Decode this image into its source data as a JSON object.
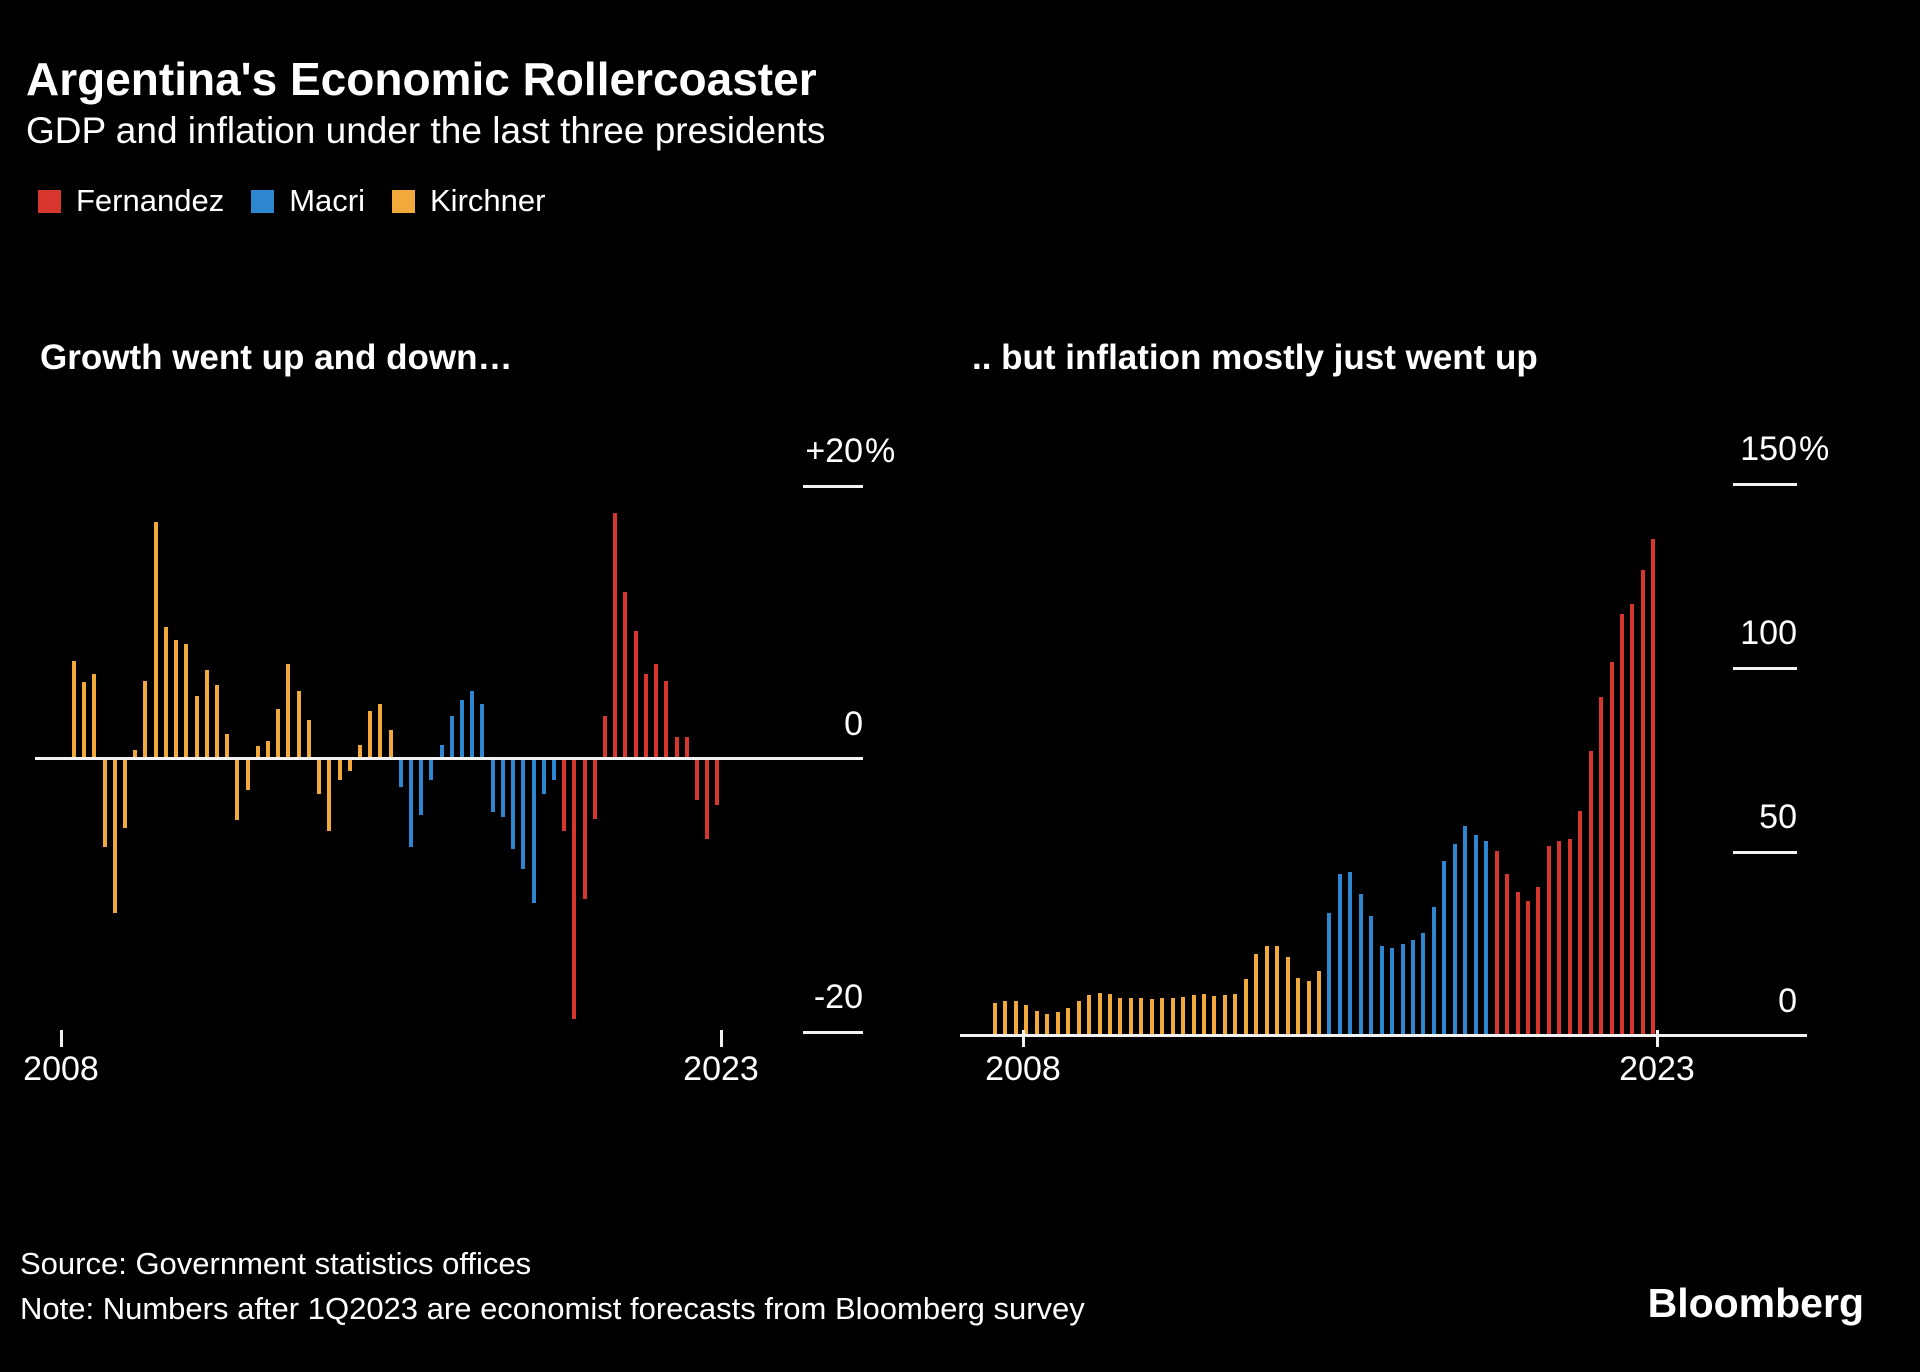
{
  "header": {
    "title": "Argentina's Economic Rollercoaster",
    "subtitle": "GDP and inflation under the last three presidents"
  },
  "legend": {
    "items": [
      {
        "label": "Fernandez",
        "color": "#d7362e"
      },
      {
        "label": "Macri",
        "color": "#2e86d1"
      },
      {
        "label": "Kirchner",
        "color": "#f2a93b"
      }
    ]
  },
  "chart_data": [
    {
      "id": "gdp",
      "type": "bar",
      "heading": "Growth went up and down…",
      "unit": "percent, year-over-year GDP growth",
      "frequency": "quarterly",
      "start_year": 2008,
      "x_ticks": [
        "2008",
        "2023"
      ],
      "y_ticks": [
        {
          "label": "+20",
          "suffix": "%",
          "value": 20
        },
        {
          "label": "0",
          "suffix": "",
          "value": 0
        },
        {
          "label": "-20",
          "suffix": "",
          "value": -20
        }
      ],
      "ylim": [
        -24,
        25
      ],
      "grid": false,
      "legend_position": "top",
      "series": [
        {
          "name": "Kirchner",
          "values": [
            7.0,
            5.5,
            6.1,
            -6.4,
            -11.2,
            -5.0,
            0.5,
            5.6,
            17.2,
            9.5,
            8.6,
            8.3,
            4.5,
            6.4,
            5.3,
            1.7,
            -4.4,
            -2.2,
            0.8,
            1.2,
            3.5,
            6.8,
            4.8,
            2.7,
            -2.5,
            -5.2,
            -1.5,
            -0.8,
            0.9,
            3.4,
            3.9,
            2.0
          ]
        },
        {
          "name": "Macri",
          "values": [
            -2.0,
            -6.4,
            -4.0,
            -1.5,
            0.9,
            3.0,
            4.2,
            4.8,
            3.9,
            -3.8,
            -4.2,
            -6.5,
            -8.0,
            -10.5,
            -2.5,
            -1.5
          ]
        },
        {
          "name": "Fernandez",
          "values": [
            -5.2,
            -19.0,
            -10.2,
            -4.3,
            3.0,
            17.9,
            12.1,
            9.2,
            6.1,
            6.8,
            5.6,
            1.5,
            1.5,
            -2.9,
            -5.8,
            -3.3
          ]
        }
      ]
    },
    {
      "id": "inflation",
      "type": "bar",
      "heading": ".. but inflation mostly just went up",
      "unit": "percent, year-over-year inflation",
      "frequency": "quarterly",
      "start_year": 2008,
      "x_ticks": [
        "2008",
        "2023"
      ],
      "y_ticks": [
        {
          "label": "150",
          "suffix": "%",
          "value": 150
        },
        {
          "label": "100",
          "suffix": "",
          "value": 100
        },
        {
          "label": "50",
          "suffix": "",
          "value": 50
        },
        {
          "label": "0",
          "suffix": "",
          "value": 0
        }
      ],
      "ylim": [
        0,
        150
      ],
      "grid": false,
      "legend_position": "top",
      "series": [
        {
          "name": "Kirchner",
          "values": [
            8.5,
            9.1,
            8.9,
            7.8,
            6.3,
            5.5,
            5.9,
            7.1,
            9.0,
            10.6,
            11.1,
            10.9,
            9.7,
            9.7,
            9.9,
            9.5,
            9.8,
            9.9,
            10.0,
            10.6,
            10.8,
            10.3,
            10.5,
            10.9,
            15.0,
            21.8,
            24.0,
            23.9,
            21.0,
            15.3,
            14.5,
            17.0
          ]
        },
        {
          "name": "Macri",
          "values": [
            33.0,
            43.5,
            44.0,
            38.0,
            32.0,
            24.0,
            23.5,
            24.5,
            25.5,
            27.5,
            34.5,
            47.0,
            51.5,
            56.5,
            54.0,
            52.5
          ]
        },
        {
          "name": "Fernandez",
          "values": [
            49.7,
            43.5,
            38.6,
            36.1,
            39.9,
            51.1,
            52.4,
            53.0,
            60.6,
            76.9,
            91.6,
            101.1,
            114.1,
            116.8,
            126.0,
            134.5
          ]
        }
      ]
    }
  ],
  "footer": {
    "source": "Source: Government statistics offices",
    "note": "Note: Numbers after 1Q2023 are economist forecasts from Bloomberg survey",
    "logo": "Bloomberg"
  }
}
